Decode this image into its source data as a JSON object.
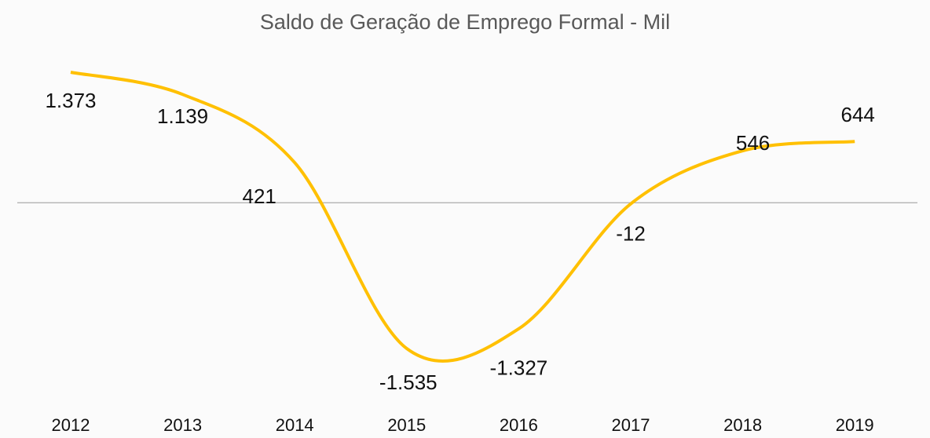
{
  "chart_data": {
    "type": "line",
    "title": "Saldo de Geração de Emprego Formal - Mil",
    "categories": [
      "2012",
      "2013",
      "2014",
      "2015",
      "2016",
      "2017",
      "2018",
      "2019"
    ],
    "values": [
      1373,
      1139,
      421,
      -1535,
      -1327,
      -12,
      546,
      644
    ],
    "value_labels": [
      "1.373",
      "1.139",
      "421",
      "-1.535",
      "-1.327",
      "-12",
      "546",
      "644"
    ],
    "color": "#ffc000"
  }
}
